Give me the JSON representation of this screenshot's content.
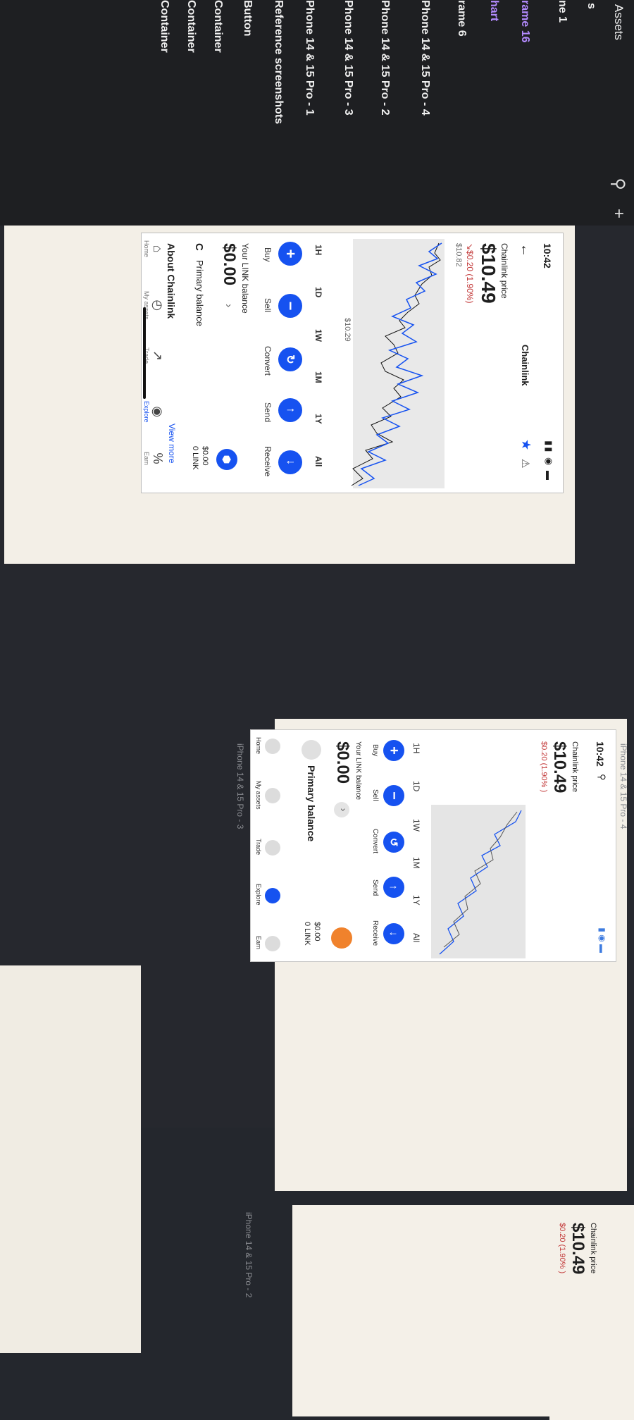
{
  "layers_panel": {
    "title": "Assets",
    "items": [
      {
        "label": "s"
      },
      {
        "label": "ne 1"
      },
      {
        "label": "rame 16"
      },
      {
        "label": "hart"
      },
      {
        "label": "rame 6"
      },
      {
        "label": "Phone 14 & 15 Pro - 4"
      },
      {
        "label": "Phone 14 & 15 Pro - 2"
      },
      {
        "label": "Phone 14 & 15 Pro - 3"
      },
      {
        "label": "Phone 14 & 15 Pro - 1"
      },
      {
        "label": "Reference screenshots"
      },
      {
        "label": "Button"
      },
      {
        "label": "Container"
      },
      {
        "label": "Container"
      },
      {
        "label": "Container"
      }
    ]
  },
  "screen1": {
    "status_time": "10:42",
    "header_title": "Chainlink",
    "price_label": "Chainlink price",
    "price": "$10.49",
    "change": "↘$0.20 (1.90%)",
    "high_label": "$10.82",
    "low_label": "$10.29",
    "timeframes": [
      "1H",
      "1D",
      "1W",
      "1M",
      "1Y",
      "All"
    ],
    "actions": [
      "Buy",
      "Sell",
      "Convert",
      "Send",
      "Receive"
    ],
    "balance_label": "Your LINK balance",
    "balance": "$0.00",
    "primary_balance": "Primary balance",
    "primary_usd": "$0.00",
    "primary_link": "0 LINK",
    "about": "About Chainlink",
    "view_more": "View more",
    "nav": [
      "Home",
      "My assets",
      "Trade",
      "Explore",
      "Earn"
    ]
  },
  "screen2": {
    "frame_label": "iPhone 14 & 15 Pro - 3",
    "top_label": "iPhone 14 & 15 Pro - 4",
    "status_time": "10:42",
    "price_label": "Chainlink price",
    "price": "$10.49",
    "change": "$0.20 (1.90% )",
    "timeframes": [
      "1H",
      "1D",
      "1W",
      "1M",
      "1Y",
      "All"
    ],
    "actions": [
      "Buy",
      "Sell",
      "Convert",
      "Send",
      "Receive"
    ],
    "balance_label": "Your LINK balance",
    "balance": "$0.00",
    "primary_balance": "Primary balance",
    "primary_usd": "$0.00",
    "primary_link": "0 LINK",
    "nav": [
      "Home",
      "My assets",
      "Trade",
      "Explore",
      "Earn"
    ]
  },
  "screen3": {
    "frame_label": "iPhone 14 & 15 Pro - 2",
    "price_label": "Chainlink price",
    "price": "$10.49",
    "change": "$0.20 (1.90% )"
  },
  "colors": {
    "accent": "#1652f0",
    "negative": "#c23737",
    "orange": "#f0822c",
    "panel": "#1e1f22"
  }
}
